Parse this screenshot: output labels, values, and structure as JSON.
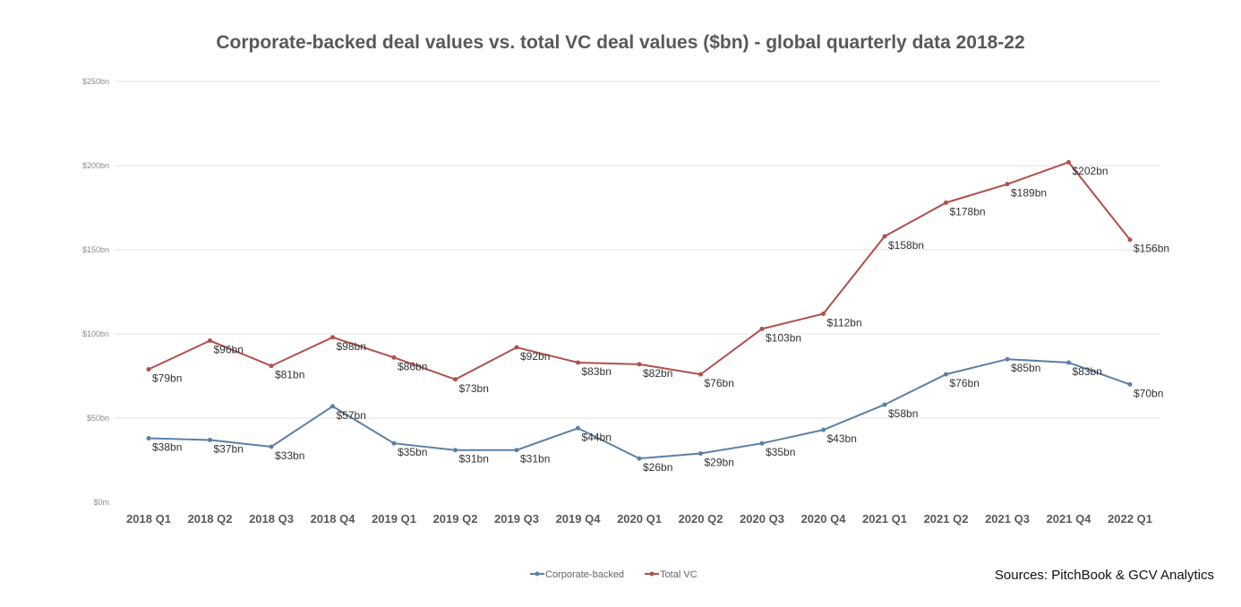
{
  "chart_data": {
    "type": "line",
    "title": "Corporate-backed deal values vs. total VC deal values ($bn) - global quarterly data 2018-22",
    "categories": [
      "2018 Q1",
      "2018 Q2",
      "2018 Q3",
      "2018 Q4",
      "2019 Q1",
      "2019 Q2",
      "2019 Q3",
      "2019 Q4",
      "2020 Q1",
      "2020 Q2",
      "2020 Q3",
      "2020 Q4",
      "2021 Q1",
      "2021 Q2",
      "2021 Q3",
      "2021 Q4",
      "2022 Q1"
    ],
    "series": [
      {
        "name": "Corporate-backed",
        "color": "#5b80a5",
        "values": [
          38,
          37,
          33,
          57,
          35,
          31,
          31,
          44,
          26,
          29,
          35,
          43,
          58,
          76,
          85,
          83,
          70
        ]
      },
      {
        "name": "Total VC",
        "color": "#b0504b",
        "values": [
          79,
          96,
          81,
          98,
          86,
          73,
          92,
          83,
          82,
          76,
          103,
          112,
          158,
          178,
          189,
          202,
          156
        ]
      }
    ],
    "yticks": [
      0,
      50,
      100,
      150,
      200,
      250
    ],
    "ytick_labels": [
      "$0m",
      "$50bn",
      "$100bn",
      "$150bn",
      "$200bn",
      "$250bn"
    ],
    "ylim": [
      0,
      250
    ],
    "grid": true,
    "legend_position": "bottom",
    "label_prefix": "$",
    "label_suffix": "bn",
    "xlabel": "",
    "ylabel": ""
  },
  "source": "Sources: PitchBook & GCV Analytics"
}
